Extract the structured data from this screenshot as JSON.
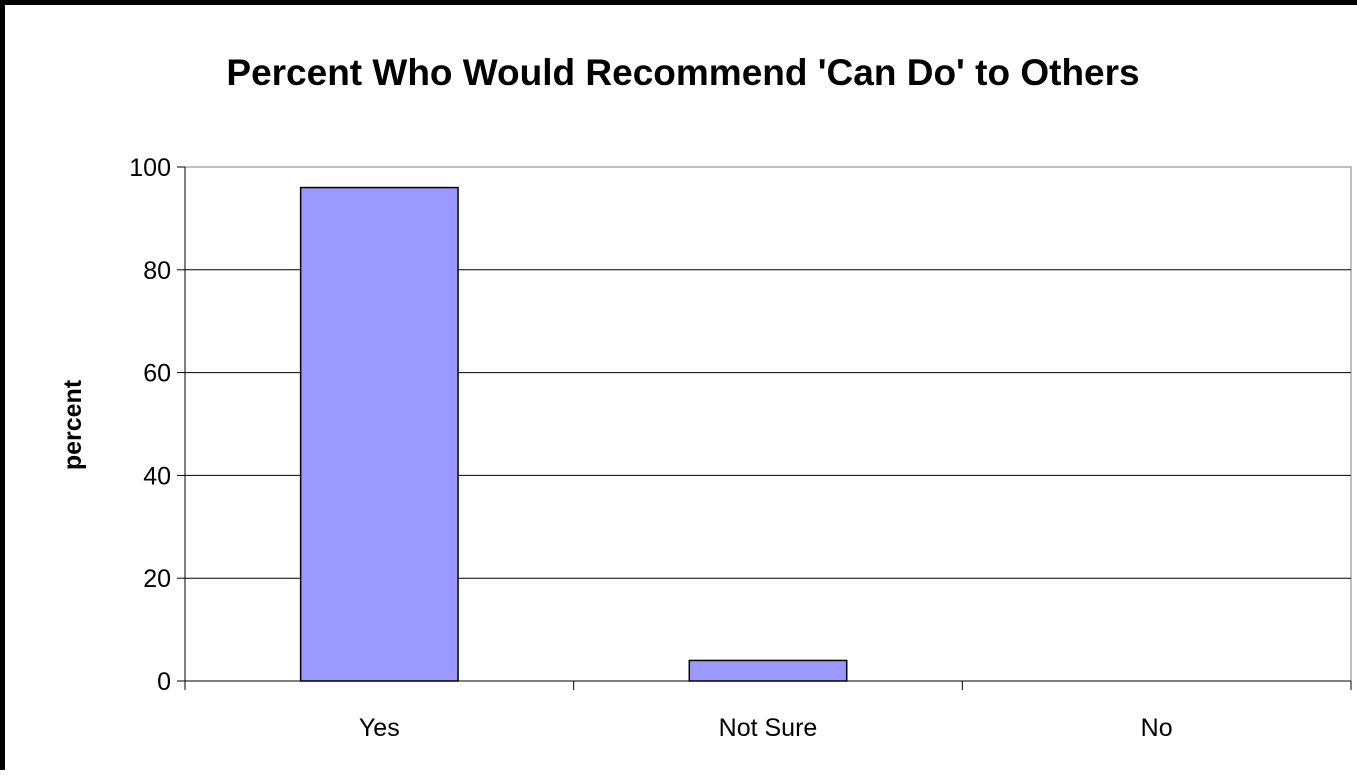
{
  "chart_data": {
    "type": "bar",
    "title": "Percent Who Would Recommend 'Can Do' to Others",
    "xlabel": "",
    "ylabel": "percent",
    "categories": [
      "Yes",
      "Not Sure",
      "No"
    ],
    "values": [
      96,
      4,
      0
    ],
    "ylim": [
      0,
      100
    ],
    "yticks": [
      0,
      20,
      40,
      60,
      80,
      100
    ],
    "grid": true,
    "legend": "none",
    "bar_color": "#9999ff",
    "bar_edge_color": "#000000"
  }
}
